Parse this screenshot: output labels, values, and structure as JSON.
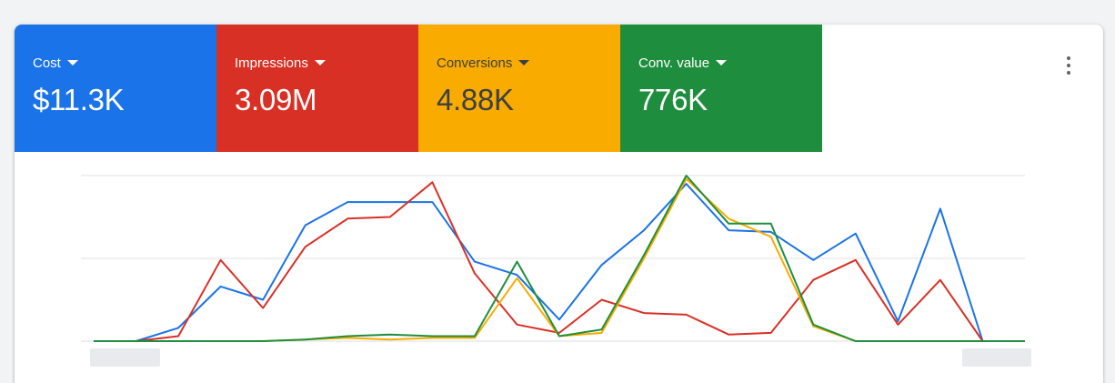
{
  "metrics": [
    {
      "label": "Cost",
      "value": "$11.3K",
      "color": "#1a73e8",
      "text_color": "#ffffff"
    },
    {
      "label": "Impressions",
      "value": "3.09M",
      "color": "#d93025",
      "text_color": "#ffffff"
    },
    {
      "label": "Conversions",
      "value": "4.88K",
      "color": "#f9ab00",
      "text_color": "#3c4043"
    },
    {
      "label": "Conv. value",
      "value": "776K",
      "color": "#1e8e3e",
      "text_color": "#ffffff"
    }
  ],
  "menu": {
    "icon": "more-vert-icon"
  },
  "chart_data": {
    "type": "line",
    "grid": true,
    "ylim": [
      0,
      100
    ],
    "x": [
      0,
      1,
      2,
      3,
      4,
      5,
      6,
      7,
      8,
      9,
      10,
      11,
      12,
      13,
      14,
      15,
      16,
      17,
      18,
      19,
      20,
      21,
      22
    ],
    "series": [
      {
        "color": "#1a73e8",
        "values": [
          0,
          0,
          8,
          33,
          25,
          70,
          84,
          84,
          84,
          48,
          40,
          13,
          46,
          67,
          95,
          67,
          66,
          49,
          65,
          12,
          80,
          0,
          0
        ]
      },
      {
        "color": "#d93025",
        "values": [
          0,
          0,
          3,
          49,
          20,
          57,
          74,
          75,
          96,
          41,
          10,
          5,
          25,
          17,
          16,
          4,
          5,
          37,
          49,
          10,
          37,
          0,
          0
        ]
      },
      {
        "color": "#f9ab00",
        "values": [
          0,
          0,
          0,
          0,
          0,
          1,
          2,
          1,
          2,
          2,
          38,
          3,
          5,
          50,
          98,
          74,
          63,
          9,
          0,
          0,
          0,
          0,
          0
        ]
      },
      {
        "color": "#1e8e3e",
        "values": [
          0,
          0,
          0,
          0,
          0,
          1,
          3,
          4,
          3,
          3,
          48,
          3,
          7,
          52,
          100,
          71,
          71,
          10,
          0,
          0,
          0,
          0,
          0
        ]
      }
    ]
  }
}
